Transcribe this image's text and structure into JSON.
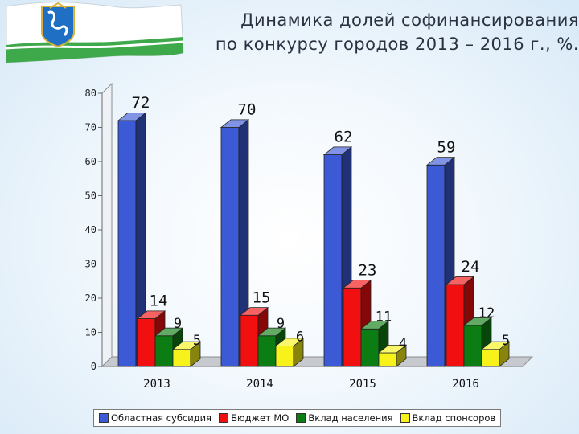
{
  "title": {
    "line1": "Динамика долей софинансирования",
    "line2": "по конкурсу городов 2013 – 2016 г., %."
  },
  "logo_icon": "kirov-region-flag-icon",
  "chart_data": {
    "type": "bar",
    "style": "3d-clustered-column",
    "categories": [
      "2013",
      "2014",
      "2015",
      "2016"
    ],
    "series": [
      {
        "name": "Областная субсидия",
        "color": "#3c59d6",
        "values": [
          72,
          70,
          62,
          59
        ]
      },
      {
        "name": "Бюджет МО",
        "color": "#f20f0f",
        "values": [
          14,
          15,
          23,
          24
        ]
      },
      {
        "name": "Вклад населения",
        "color": "#0c7d12",
        "values": [
          9,
          9,
          11,
          12
        ]
      },
      {
        "name": "Вклад спонсоров",
        "color": "#f6f21a",
        "values": [
          5,
          6,
          4,
          5
        ]
      }
    ],
    "y_ticks": [
      "0",
      "10",
      "20",
      "30",
      "40",
      "50",
      "60",
      "70",
      "80"
    ],
    "ylim": [
      0,
      80
    ],
    "grid": false,
    "legend_position": "bottom"
  }
}
